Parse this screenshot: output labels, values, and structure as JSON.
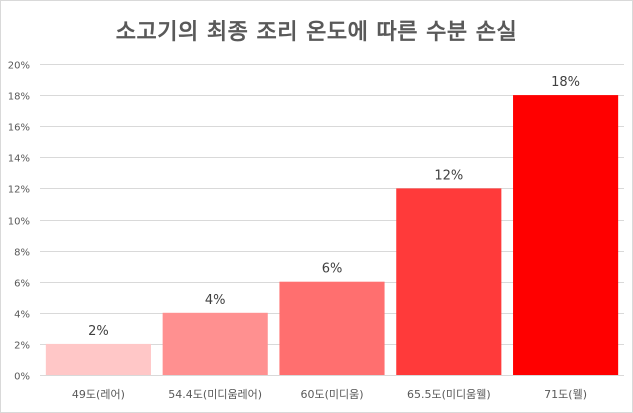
{
  "chart_data": {
    "type": "bar",
    "title": "소고기의 최종 조리 온도에 따른 수분 손실",
    "xlabel": "",
    "ylabel": "",
    "categories": [
      "49도(레어)",
      "54.4도(미디움레어)",
      "60도(미디움)",
      "65.5도(미디움웰)",
      "71도(웰)"
    ],
    "values": [
      2,
      4,
      6,
      12,
      18
    ],
    "data_labels": [
      "2%",
      "4%",
      "6%",
      "12%",
      "18%"
    ],
    "bar_colors": [
      "#ffc7c7",
      "#ff9090",
      "#ff6f6f",
      "#ff3a3a",
      "#ff0000"
    ],
    "ylim": [
      0,
      20
    ],
    "yticks": [
      0,
      2,
      4,
      6,
      8,
      10,
      12,
      14,
      16,
      18,
      20
    ],
    "ytick_labels": [
      "0%",
      "2%",
      "4%",
      "6%",
      "8%",
      "10%",
      "12%",
      "14%",
      "16%",
      "18%",
      "20%"
    ],
    "grid": true,
    "legend": "none"
  }
}
